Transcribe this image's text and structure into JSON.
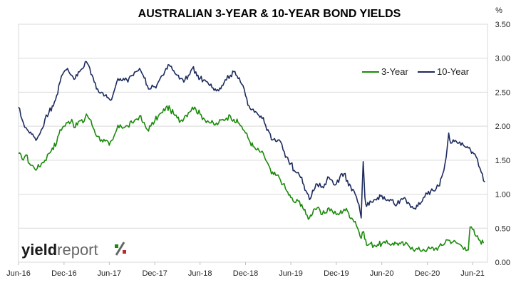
{
  "chart_data": {
    "type": "line",
    "title": "AUSTRALIAN 3-YEAR & 10-YEAR BOND YIELDS",
    "y_unit_label": "%",
    "ylim": [
      0.0,
      3.5
    ],
    "yticks": [
      "0.00",
      "0.50",
      "1.00",
      "1.50",
      "2.00",
      "2.50",
      "3.00",
      "3.50"
    ],
    "xlim": [
      "2016-06-01",
      "2021-07-31"
    ],
    "xticks": [
      {
        "date": "2016-06-01",
        "label": "Jun-16"
      },
      {
        "date": "2016-12-01",
        "label": "Dec-16"
      },
      {
        "date": "2017-06-01",
        "label": "Jun-17"
      },
      {
        "date": "2017-12-01",
        "label": "Dec-17"
      },
      {
        "date": "2018-06-01",
        "label": "Jun-18"
      },
      {
        "date": "2018-12-01",
        "label": "Dec-18"
      },
      {
        "date": "2019-06-01",
        "label": "Jun-19"
      },
      {
        "date": "2019-12-01",
        "label": "Dec-19"
      },
      {
        "date": "2020-06-01",
        "label": "Jun-20"
      },
      {
        "date": "2020-12-01",
        "label": "Dec-20"
      },
      {
        "date": "2021-06-01",
        "label": "Jun-21"
      }
    ],
    "grid": "horizontal",
    "legend_position": "top-right",
    "series": [
      {
        "name": "3-Year",
        "color": "#1a8a0a",
        "points": [
          [
            "2016-06-01",
            1.6
          ],
          [
            "2016-06-15",
            1.52
          ],
          [
            "2016-07-01",
            1.58
          ],
          [
            "2016-07-15",
            1.45
          ],
          [
            "2016-08-01",
            1.4
          ],
          [
            "2016-08-15",
            1.38
          ],
          [
            "2016-09-01",
            1.45
          ],
          [
            "2016-09-15",
            1.5
          ],
          [
            "2016-10-01",
            1.6
          ],
          [
            "2016-10-15",
            1.68
          ],
          [
            "2016-11-01",
            1.75
          ],
          [
            "2016-11-15",
            1.95
          ],
          [
            "2016-12-01",
            2.0
          ],
          [
            "2016-12-15",
            2.05
          ],
          [
            "2017-01-01",
            2.1
          ],
          [
            "2017-01-15",
            1.98
          ],
          [
            "2017-02-01",
            2.08
          ],
          [
            "2017-02-15",
            2.05
          ],
          [
            "2017-03-01",
            2.18
          ],
          [
            "2017-03-15",
            2.1
          ],
          [
            "2017-04-01",
            1.95
          ],
          [
            "2017-04-15",
            1.85
          ],
          [
            "2017-05-01",
            1.8
          ],
          [
            "2017-05-15",
            1.78
          ],
          [
            "2017-06-01",
            1.72
          ],
          [
            "2017-06-15",
            1.8
          ],
          [
            "2017-07-01",
            1.95
          ],
          [
            "2017-07-15",
            2.02
          ],
          [
            "2017-08-01",
            1.98
          ],
          [
            "2017-08-15",
            2.0
          ],
          [
            "2017-09-01",
            2.05
          ],
          [
            "2017-09-15",
            2.1
          ],
          [
            "2017-10-01",
            2.15
          ],
          [
            "2017-10-15",
            2.05
          ],
          [
            "2017-11-01",
            1.95
          ],
          [
            "2017-11-15",
            2.0
          ],
          [
            "2017-12-01",
            2.08
          ],
          [
            "2017-12-15",
            2.15
          ],
          [
            "2018-01-01",
            2.2
          ],
          [
            "2018-01-15",
            2.28
          ],
          [
            "2018-02-01",
            2.25
          ],
          [
            "2018-02-15",
            2.18
          ],
          [
            "2018-03-01",
            2.12
          ],
          [
            "2018-03-15",
            2.08
          ],
          [
            "2018-04-01",
            2.15
          ],
          [
            "2018-04-15",
            2.2
          ],
          [
            "2018-05-01",
            2.28
          ],
          [
            "2018-05-15",
            2.25
          ],
          [
            "2018-06-01",
            2.18
          ],
          [
            "2018-06-15",
            2.12
          ],
          [
            "2018-07-01",
            2.08
          ],
          [
            "2018-07-15",
            2.05
          ],
          [
            "2018-08-01",
            2.02
          ],
          [
            "2018-08-15",
            2.05
          ],
          [
            "2018-09-01",
            2.1
          ],
          [
            "2018-09-15",
            2.12
          ],
          [
            "2018-10-01",
            2.15
          ],
          [
            "2018-10-15",
            2.1
          ],
          [
            "2018-11-01",
            2.05
          ],
          [
            "2018-11-15",
            2.0
          ],
          [
            "2018-12-01",
            1.9
          ],
          [
            "2018-12-15",
            1.8
          ],
          [
            "2019-01-01",
            1.7
          ],
          [
            "2019-01-15",
            1.65
          ],
          [
            "2019-02-01",
            1.62
          ],
          [
            "2019-02-15",
            1.55
          ],
          [
            "2019-03-01",
            1.45
          ],
          [
            "2019-03-15",
            1.3
          ],
          [
            "2019-04-01",
            1.28
          ],
          [
            "2019-04-15",
            1.25
          ],
          [
            "2019-05-01",
            1.15
          ],
          [
            "2019-05-15",
            1.05
          ],
          [
            "2019-06-01",
            0.95
          ],
          [
            "2019-06-15",
            0.88
          ],
          [
            "2019-07-01",
            0.9
          ],
          [
            "2019-07-15",
            0.85
          ],
          [
            "2019-08-01",
            0.7
          ],
          [
            "2019-08-15",
            0.65
          ],
          [
            "2019-09-01",
            0.78
          ],
          [
            "2019-09-15",
            0.8
          ],
          [
            "2019-10-01",
            0.7
          ],
          [
            "2019-10-15",
            0.72
          ],
          [
            "2019-11-01",
            0.8
          ],
          [
            "2019-11-15",
            0.75
          ],
          [
            "2019-12-01",
            0.7
          ],
          [
            "2019-12-15",
            0.72
          ],
          [
            "2020-01-01",
            0.78
          ],
          [
            "2020-01-15",
            0.75
          ],
          [
            "2020-02-01",
            0.65
          ],
          [
            "2020-02-15",
            0.6
          ],
          [
            "2020-03-01",
            0.45
          ],
          [
            "2020-03-10",
            0.35
          ],
          [
            "2020-03-20",
            0.45
          ],
          [
            "2020-04-01",
            0.25
          ],
          [
            "2020-04-15",
            0.27
          ],
          [
            "2020-05-01",
            0.25
          ],
          [
            "2020-05-15",
            0.26
          ],
          [
            "2020-06-01",
            0.27
          ],
          [
            "2020-06-15",
            0.28
          ],
          [
            "2020-07-01",
            0.27
          ],
          [
            "2020-07-15",
            0.28
          ],
          [
            "2020-08-01",
            0.28
          ],
          [
            "2020-08-15",
            0.27
          ],
          [
            "2020-09-01",
            0.26
          ],
          [
            "2020-09-15",
            0.25
          ],
          [
            "2020-10-01",
            0.22
          ],
          [
            "2020-10-15",
            0.19
          ],
          [
            "2020-11-01",
            0.18
          ],
          [
            "2020-11-15",
            0.19
          ],
          [
            "2020-12-01",
            0.19
          ],
          [
            "2020-12-15",
            0.2
          ],
          [
            "2021-01-01",
            0.2
          ],
          [
            "2021-01-15",
            0.22
          ],
          [
            "2021-02-01",
            0.25
          ],
          [
            "2021-02-15",
            0.33
          ],
          [
            "2021-03-01",
            0.32
          ],
          [
            "2021-03-15",
            0.3
          ],
          [
            "2021-04-01",
            0.28
          ],
          [
            "2021-04-15",
            0.25
          ],
          [
            "2021-05-01",
            0.22
          ],
          [
            "2021-05-15",
            0.18
          ],
          [
            "2021-05-22",
            0.52
          ],
          [
            "2021-06-01",
            0.48
          ],
          [
            "2021-06-15",
            0.38
          ],
          [
            "2021-07-01",
            0.32
          ],
          [
            "2021-07-15",
            0.28
          ]
        ]
      },
      {
        "name": "10-Year",
        "color": "#1c2a5e",
        "points": [
          [
            "2016-06-01",
            2.28
          ],
          [
            "2016-06-15",
            2.1
          ],
          [
            "2016-07-01",
            1.98
          ],
          [
            "2016-07-15",
            1.9
          ],
          [
            "2016-08-01",
            1.85
          ],
          [
            "2016-08-15",
            1.82
          ],
          [
            "2016-09-01",
            1.95
          ],
          [
            "2016-09-15",
            2.1
          ],
          [
            "2016-10-01",
            2.2
          ],
          [
            "2016-10-15",
            2.3
          ],
          [
            "2016-11-01",
            2.45
          ],
          [
            "2016-11-15",
            2.65
          ],
          [
            "2016-12-01",
            2.8
          ],
          [
            "2016-12-15",
            2.85
          ],
          [
            "2017-01-01",
            2.75
          ],
          [
            "2017-01-15",
            2.7
          ],
          [
            "2017-02-01",
            2.8
          ],
          [
            "2017-02-15",
            2.85
          ],
          [
            "2017-03-01",
            2.95
          ],
          [
            "2017-03-15",
            2.85
          ],
          [
            "2017-04-01",
            2.65
          ],
          [
            "2017-04-15",
            2.55
          ],
          [
            "2017-05-01",
            2.5
          ],
          [
            "2017-05-15",
            2.45
          ],
          [
            "2017-06-01",
            2.4
          ],
          [
            "2017-06-15",
            2.45
          ],
          [
            "2017-07-01",
            2.65
          ],
          [
            "2017-07-15",
            2.7
          ],
          [
            "2017-08-01",
            2.68
          ],
          [
            "2017-08-15",
            2.65
          ],
          [
            "2017-09-01",
            2.75
          ],
          [
            "2017-09-15",
            2.8
          ],
          [
            "2017-10-01",
            2.85
          ],
          [
            "2017-10-15",
            2.75
          ],
          [
            "2017-11-01",
            2.6
          ],
          [
            "2017-11-15",
            2.55
          ],
          [
            "2017-12-01",
            2.58
          ],
          [
            "2017-12-15",
            2.65
          ],
          [
            "2018-01-01",
            2.75
          ],
          [
            "2018-01-15",
            2.85
          ],
          [
            "2018-02-01",
            2.88
          ],
          [
            "2018-02-15",
            2.82
          ],
          [
            "2018-03-01",
            2.75
          ],
          [
            "2018-03-15",
            2.7
          ],
          [
            "2018-04-01",
            2.68
          ],
          [
            "2018-04-15",
            2.75
          ],
          [
            "2018-05-01",
            2.85
          ],
          [
            "2018-05-15",
            2.8
          ],
          [
            "2018-06-01",
            2.7
          ],
          [
            "2018-06-15",
            2.68
          ],
          [
            "2018-07-01",
            2.65
          ],
          [
            "2018-07-15",
            2.62
          ],
          [
            "2018-08-01",
            2.55
          ],
          [
            "2018-08-15",
            2.52
          ],
          [
            "2018-09-01",
            2.6
          ],
          [
            "2018-09-15",
            2.68
          ],
          [
            "2018-10-01",
            2.75
          ],
          [
            "2018-10-15",
            2.8
          ],
          [
            "2018-11-01",
            2.7
          ],
          [
            "2018-11-15",
            2.62
          ],
          [
            "2018-12-01",
            2.45
          ],
          [
            "2018-12-15",
            2.3
          ],
          [
            "2019-01-01",
            2.25
          ],
          [
            "2019-01-15",
            2.2
          ],
          [
            "2019-02-01",
            2.15
          ],
          [
            "2019-02-15",
            2.05
          ],
          [
            "2019-03-01",
            1.95
          ],
          [
            "2019-03-15",
            1.8
          ],
          [
            "2019-04-01",
            1.78
          ],
          [
            "2019-04-15",
            1.8
          ],
          [
            "2019-05-01",
            1.65
          ],
          [
            "2019-05-15",
            1.55
          ],
          [
            "2019-06-01",
            1.45
          ],
          [
            "2019-06-15",
            1.35
          ],
          [
            "2019-07-01",
            1.32
          ],
          [
            "2019-07-15",
            1.25
          ],
          [
            "2019-08-01",
            1.05
          ],
          [
            "2019-08-15",
            0.92
          ],
          [
            "2019-09-01",
            1.05
          ],
          [
            "2019-09-15",
            1.15
          ],
          [
            "2019-10-01",
            1.1
          ],
          [
            "2019-10-15",
            1.15
          ],
          [
            "2019-11-01",
            1.25
          ],
          [
            "2019-11-15",
            1.2
          ],
          [
            "2019-12-01",
            1.15
          ],
          [
            "2019-12-15",
            1.25
          ],
          [
            "2020-01-01",
            1.3
          ],
          [
            "2020-01-15",
            1.2
          ],
          [
            "2020-02-01",
            1.05
          ],
          [
            "2020-02-15",
            1.0
          ],
          [
            "2020-03-01",
            0.85
          ],
          [
            "2020-03-10",
            0.65
          ],
          [
            "2020-03-18",
            1.48
          ],
          [
            "2020-03-25",
            0.95
          ],
          [
            "2020-04-01",
            0.82
          ],
          [
            "2020-04-15",
            0.9
          ],
          [
            "2020-05-01",
            0.92
          ],
          [
            "2020-05-15",
            0.95
          ],
          [
            "2020-06-01",
            0.98
          ],
          [
            "2020-06-15",
            0.92
          ],
          [
            "2020-07-01",
            0.9
          ],
          [
            "2020-07-15",
            0.92
          ],
          [
            "2020-08-01",
            0.85
          ],
          [
            "2020-08-15",
            0.92
          ],
          [
            "2020-09-01",
            0.95
          ],
          [
            "2020-09-15",
            0.88
          ],
          [
            "2020-10-01",
            0.82
          ],
          [
            "2020-10-15",
            0.78
          ],
          [
            "2020-11-01",
            0.85
          ],
          [
            "2020-11-15",
            0.95
          ],
          [
            "2020-12-01",
            1.0
          ],
          [
            "2020-12-15",
            1.05
          ],
          [
            "2021-01-01",
            1.05
          ],
          [
            "2021-01-15",
            1.12
          ],
          [
            "2021-02-01",
            1.3
          ],
          [
            "2021-02-15",
            1.55
          ],
          [
            "2021-02-25",
            1.9
          ],
          [
            "2021-03-05",
            1.75
          ],
          [
            "2021-03-15",
            1.8
          ],
          [
            "2021-04-01",
            1.75
          ],
          [
            "2021-04-15",
            1.72
          ],
          [
            "2021-05-01",
            1.7
          ],
          [
            "2021-05-15",
            1.68
          ],
          [
            "2021-06-01",
            1.62
          ],
          [
            "2021-06-15",
            1.55
          ],
          [
            "2021-07-01",
            1.38
          ],
          [
            "2021-07-10",
            1.3
          ],
          [
            "2021-07-20",
            1.18
          ]
        ]
      }
    ]
  },
  "logo": {
    "dark": "yield",
    "light": "report",
    "pct": "%"
  }
}
